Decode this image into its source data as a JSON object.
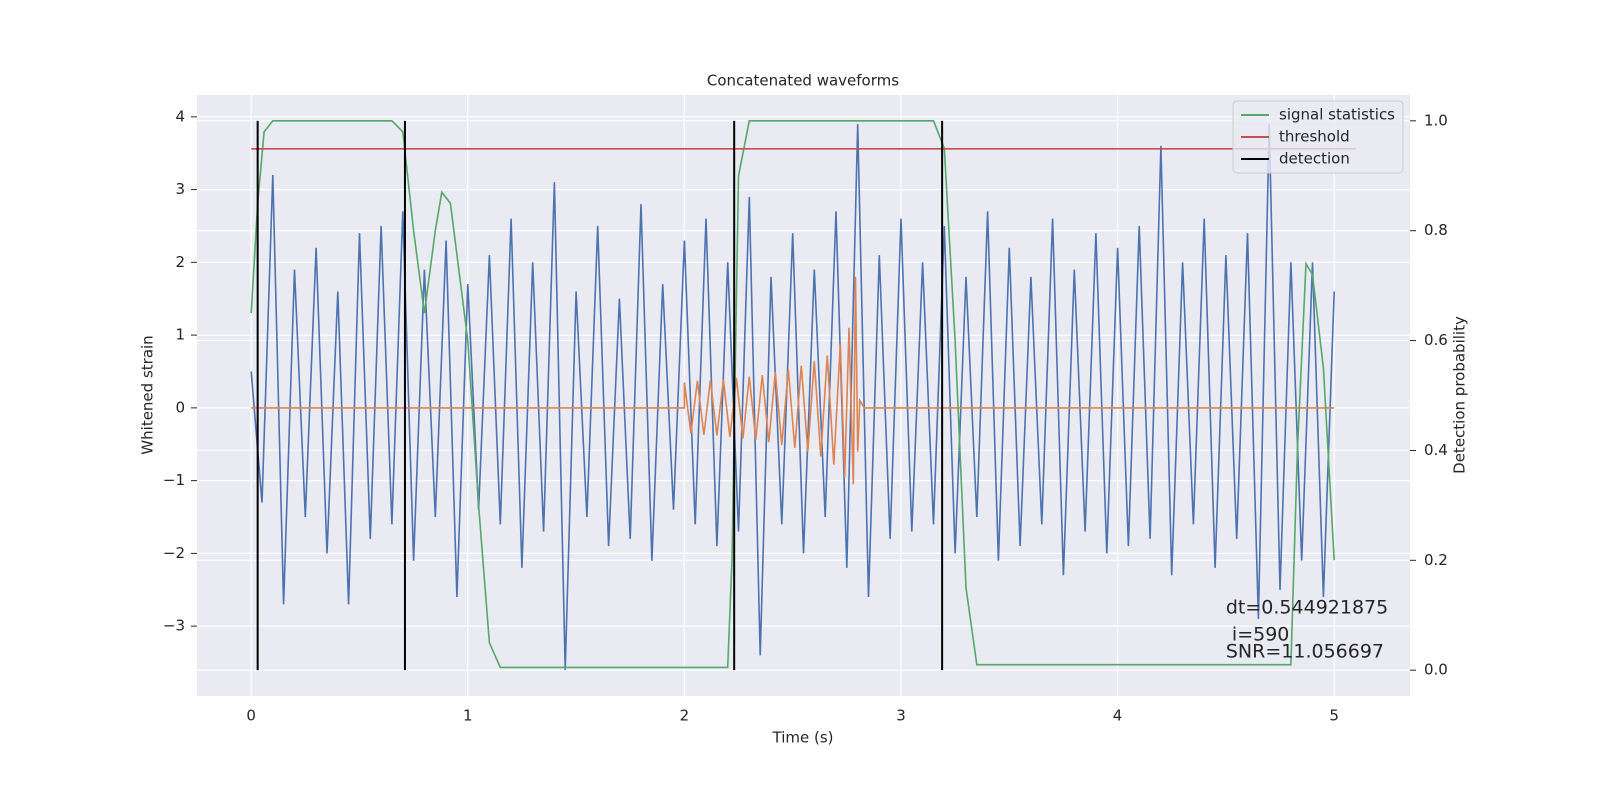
{
  "chart_data": {
    "type": "line",
    "title": "Concatenated waveforms",
    "xlabel": "Time (s)",
    "ylabel": "Whitened strain",
    "y2label": "Detection probability",
    "xlim": [
      -0.25,
      5.35
    ],
    "ylim": [
      -3.96,
      4.3
    ],
    "y2lim": [
      -0.047,
      1.047
    ],
    "xticks": [
      0,
      1,
      2,
      3,
      4,
      5
    ],
    "yticks": [
      {
        "value": -3,
        "label": "−3"
      },
      {
        "value": -2,
        "label": "−2"
      },
      {
        "value": -1,
        "label": "−1"
      },
      0,
      1,
      2,
      3,
      4
    ],
    "y2ticks": [
      {
        "value": 0,
        "label": "0.0"
      },
      0.2,
      0.4,
      0.6,
      0.8,
      {
        "value": 1,
        "label": "1.0"
      }
    ],
    "grid": true,
    "legend": "upper right",
    "annotations": [
      "dt=0.544921875",
      " i=590",
      "SNR=11.056697"
    ],
    "series": [
      {
        "color": "#4c72b0",
        "x": [
          0,
          0.05,
          0.1,
          0.15,
          0.2,
          0.25,
          0.3,
          0.35,
          0.4,
          0.45,
          0.5,
          0.55,
          0.6,
          0.65,
          0.7,
          0.75,
          0.8,
          0.85,
          0.9,
          0.95,
          1,
          1.05,
          1.1,
          1.15,
          1.2,
          1.25,
          1.3,
          1.35,
          1.4,
          1.45,
          1.5,
          1.55,
          1.6,
          1.65,
          1.7,
          1.75,
          1.8,
          1.85,
          1.9,
          1.95,
          2,
          2.05,
          2.1,
          2.15,
          2.2,
          2.25,
          2.3,
          2.35,
          2.4,
          2.45,
          2.5,
          2.55,
          2.6,
          2.65,
          2.7,
          2.75,
          2.8,
          2.85,
          2.9,
          2.95,
          3,
          3.05,
          3.1,
          3.15,
          3.2,
          3.25,
          3.3,
          3.35,
          3.4,
          3.45,
          3.5,
          3.55,
          3.6,
          3.65,
          3.7,
          3.75,
          3.8,
          3.85,
          3.9,
          3.95,
          4,
          4.05,
          4.1,
          4.15,
          4.2,
          4.25,
          4.3,
          4.35,
          4.4,
          4.45,
          4.5,
          4.55,
          4.6,
          4.65,
          4.7,
          4.75,
          4.8,
          4.85,
          4.9,
          4.95,
          5
        ],
        "values": [
          0.5,
          -1.3,
          3.2,
          -2.7,
          1.9,
          -1.5,
          2.2,
          -2.0,
          1.6,
          -2.7,
          2.4,
          -1.8,
          2.5,
          -1.6,
          2.7,
          -2.1,
          1.9,
          -1.5,
          2.3,
          -2.6,
          1.7,
          -1.4,
          2.1,
          -1.6,
          2.6,
          -2.2,
          2.0,
          -1.7,
          3.1,
          -3.6,
          1.6,
          -1.5,
          2.5,
          -1.9,
          1.5,
          -1.8,
          2.8,
          -2.1,
          1.7,
          -1.4,
          2.3,
          -1.6,
          2.6,
          -1.9,
          2.0,
          -1.7,
          2.9,
          -3.4,
          1.8,
          -1.6,
          2.4,
          -2.0,
          1.9,
          -1.5,
          2.7,
          -2.2,
          3.9,
          -2.6,
          2.1,
          -1.8,
          2.6,
          -1.7,
          2.0,
          -1.6,
          2.5,
          -2.0,
          1.8,
          -1.5,
          2.7,
          -2.1,
          2.2,
          -1.9,
          1.8,
          -1.6,
          2.6,
          -2.3,
          1.9,
          -1.7,
          2.4,
          -2.0,
          2.2,
          -1.9,
          2.5,
          -1.8,
          3.6,
          -2.3,
          2.0,
          -1.6,
          2.6,
          -2.2,
          2.1,
          -1.8,
          2.4,
          -2.9,
          3.9,
          -2.5,
          2.0,
          -2.1,
          2.0,
          -2.6,
          1.6
        ]
      },
      {
        "color": "#dd8452",
        "x": [
          0,
          2.0,
          2.0,
          2.03,
          2.06,
          2.09,
          2.12,
          2.15,
          2.18,
          2.21,
          2.24,
          2.27,
          2.3,
          2.33,
          2.36,
          2.39,
          2.42,
          2.45,
          2.48,
          2.51,
          2.54,
          2.57,
          2.6,
          2.63,
          2.66,
          2.69,
          2.72,
          2.74,
          2.76,
          2.78,
          2.79,
          2.8,
          2.81,
          2.83,
          5
        ],
        "values": [
          0,
          0,
          0.35,
          -0.35,
          0.37,
          -0.37,
          0.38,
          -0.38,
          0.39,
          -0.4,
          0.41,
          -0.42,
          0.43,
          -0.44,
          0.45,
          -0.47,
          0.49,
          -0.51,
          0.53,
          -0.55,
          0.58,
          -0.6,
          0.64,
          -0.67,
          0.72,
          -0.78,
          0.88,
          -0.95,
          1.1,
          -1.05,
          1.8,
          -0.6,
          0.1,
          0,
          0
        ]
      },
      {
        "name": "signal statistics",
        "color": "#55a868",
        "axis": "y2",
        "x": [
          0,
          0.03,
          0.06,
          0.1,
          0.65,
          0.7,
          0.75,
          0.8,
          0.85,
          0.88,
          0.92,
          1.0,
          1.05,
          1.1,
          1.15,
          1.4,
          2.2,
          2.22,
          2.25,
          2.3,
          3.15,
          3.2,
          3.25,
          3.3,
          3.35,
          4.8,
          4.83,
          4.87,
          4.9,
          4.95,
          5
        ],
        "values": [
          0.65,
          0.85,
          0.98,
          1.0,
          1.0,
          0.98,
          0.8,
          0.65,
          0.8,
          0.87,
          0.85,
          0.6,
          0.3,
          0.05,
          0.005,
          0.005,
          0.005,
          0.2,
          0.9,
          1.0,
          1.0,
          0.95,
          0.6,
          0.15,
          0.01,
          0.01,
          0.4,
          0.74,
          0.72,
          0.55,
          0.2
        ]
      },
      {
        "name": "threshold",
        "color": "#c44e52",
        "axis": "y2",
        "x": [
          0,
          5.1
        ],
        "values": [
          0.949,
          0.949
        ]
      },
      {
        "name": "detection",
        "color": "#000000",
        "axis": "y2",
        "type": "vline",
        "x": [
          0.03,
          0.71,
          2.23,
          3.19
        ],
        "values": [
          1,
          1,
          1,
          1
        ]
      }
    ]
  }
}
